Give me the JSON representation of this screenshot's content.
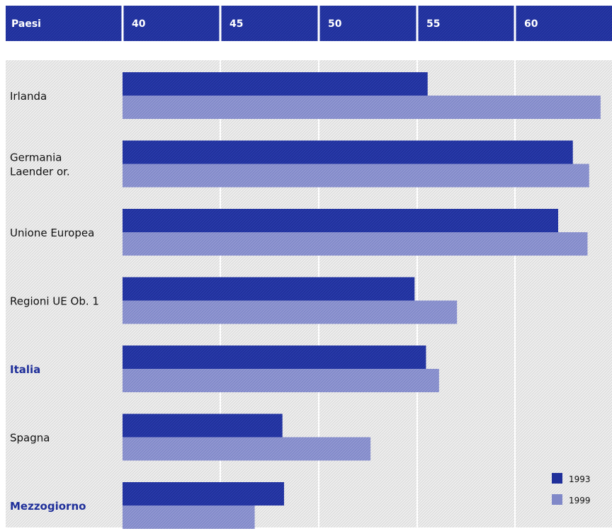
{
  "chart_data": {
    "type": "bar",
    "orientation": "horizontal",
    "header_label": "Paesi",
    "tick_labels": [
      "40",
      "45",
      "50",
      "55",
      "60"
    ],
    "xlim": [
      34,
      64
    ],
    "grid": true,
    "categories": [
      [
        "Irlanda"
      ],
      [
        "Germania",
        "Laender or."
      ],
      [
        "Unione Europea"
      ],
      [
        "Regioni UE Ob. 1"
      ],
      [
        "Italia"
      ],
      [
        "Spagna"
      ],
      [
        "Mezzogiorno"
      ]
    ],
    "highlighted_categories": [
      4,
      6
    ],
    "series": [
      {
        "name": "1993",
        "values": [
          52.7,
          61.6,
          60.7,
          51.9,
          52.6,
          43.8,
          43.9
        ]
      },
      {
        "name": "1999",
        "values": [
          63.3,
          62.6,
          62.5,
          54.5,
          53.4,
          49.2,
          42.1
        ]
      }
    ],
    "legend_position": "bottom-right",
    "colors": {
      "header": "#1f2f9a",
      "series_1993": "#1f2f9a",
      "series_1999": "#8088c8",
      "highlight_text": "#1f2f9a",
      "plot_hatch": "#e2e2e2"
    }
  }
}
